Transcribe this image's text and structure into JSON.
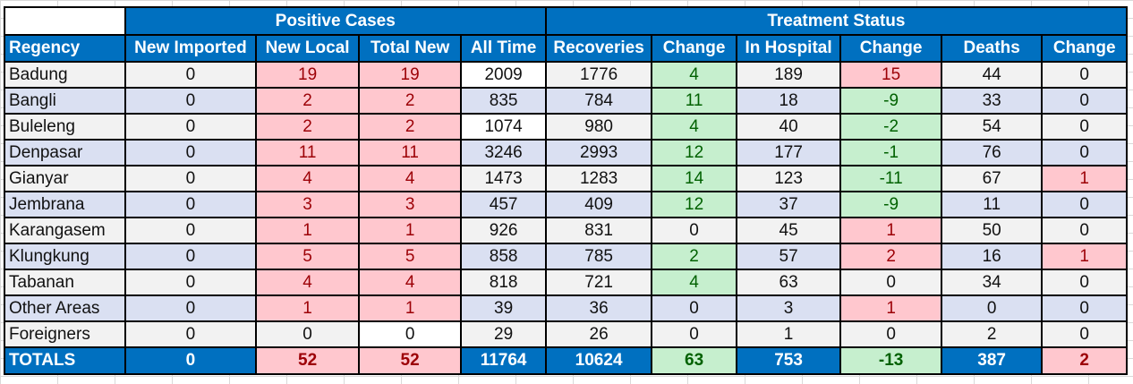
{
  "header": {
    "group_positive": "Positive Cases",
    "group_treatment": "Treatment Status",
    "columns": [
      "Regency",
      "New Imported",
      "New Local",
      "Total New",
      "All Time",
      "Recoveries",
      "Change",
      "In Hospital",
      "Change",
      "Deaths",
      "Change"
    ]
  },
  "rows": [
    [
      "Badung",
      "0",
      "19",
      "19",
      "2009",
      "1776",
      "4",
      "189",
      "15",
      "44",
      "0"
    ],
    [
      "Bangli",
      "0",
      "2",
      "2",
      "835",
      "784",
      "11",
      "18",
      "-9",
      "33",
      "0"
    ],
    [
      "Buleleng",
      "0",
      "2",
      "2",
      "1074",
      "980",
      "4",
      "40",
      "-2",
      "54",
      "0"
    ],
    [
      "Denpasar",
      "0",
      "11",
      "11",
      "3246",
      "2993",
      "12",
      "177",
      "-1",
      "76",
      "0"
    ],
    [
      "Gianyar",
      "0",
      "4",
      "4",
      "1473",
      "1283",
      "14",
      "123",
      "-11",
      "67",
      "1"
    ],
    [
      "Jembrana",
      "0",
      "3",
      "3",
      "457",
      "409",
      "12",
      "37",
      "-9",
      "11",
      "0"
    ],
    [
      "Karangasem",
      "0",
      "1",
      "1",
      "926",
      "831",
      "0",
      "45",
      "1",
      "50",
      "0"
    ],
    [
      "Klungkung",
      "0",
      "5",
      "5",
      "858",
      "785",
      "2",
      "57",
      "2",
      "16",
      "1"
    ],
    [
      "Tabanan",
      "0",
      "4",
      "4",
      "818",
      "721",
      "4",
      "63",
      "0",
      "34",
      "0"
    ],
    [
      "Other Areas",
      "0",
      "1",
      "1",
      "39",
      "36",
      "0",
      "3",
      "1",
      "0",
      "0"
    ],
    [
      "Foreigners",
      "0",
      "0",
      "0",
      "29",
      "26",
      "0",
      "1",
      "0",
      "2",
      "0"
    ]
  ],
  "totals": [
    "TOTALS",
    "0",
    "52",
    "52",
    "11764",
    "10624",
    "63",
    "753",
    "-13",
    "387",
    "2"
  ],
  "colors": {
    "header_blue": "#0070c0",
    "alert_fill": "#ffc7ce",
    "alert_text": "#9c0006",
    "good_fill": "#c6efce",
    "good_text": "#006100"
  }
}
